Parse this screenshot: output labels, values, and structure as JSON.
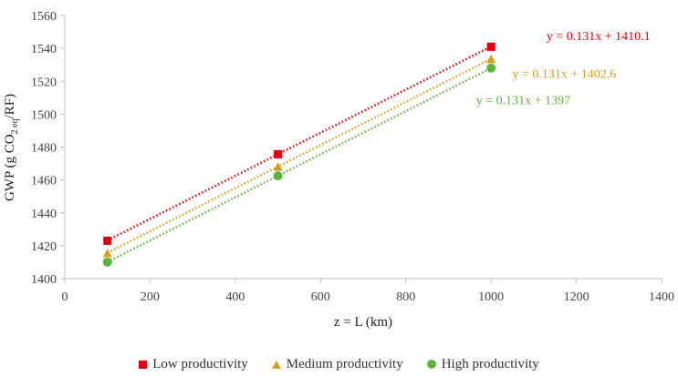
{
  "chart_data": {
    "type": "scatter",
    "title": "",
    "xlabel": "z = L (km)",
    "ylabel_main": "GWP (g CO",
    "ylabel_sub": "2 eq",
    "ylabel_tail": "/RF)",
    "xlim": [
      0,
      1400
    ],
    "ylim": [
      1400,
      1560
    ],
    "xticks": [
      0,
      200,
      400,
      600,
      800,
      1000,
      1200,
      1400
    ],
    "yticks": [
      1400,
      1420,
      1440,
      1460,
      1480,
      1500,
      1520,
      1540,
      1560
    ],
    "grid": false,
    "legend_position": "bottom",
    "series": [
      {
        "name": "Low productivity",
        "marker": "square",
        "color": "#E3000F",
        "x": [
          100,
          500,
          1000
        ],
        "y": [
          1423,
          1475.6,
          1541
        ],
        "trendline": {
          "slope": 0.131,
          "intercept": 1410.1,
          "label": "y = 0.131x + 1410.1"
        }
      },
      {
        "name": "Medium productivity",
        "marker": "triangle",
        "color": "#D4A017",
        "x": [
          100,
          500,
          1000
        ],
        "y": [
          1415.5,
          1468,
          1533.5
        ],
        "trendline": {
          "slope": 0.131,
          "intercept": 1402.6,
          "label": "y = 0.131x + 1402.6"
        }
      },
      {
        "name": "High productivity",
        "marker": "circle",
        "color": "#5DB43C",
        "x": [
          100,
          500,
          1000
        ],
        "y": [
          1410,
          1462.5,
          1528
        ],
        "trendline": {
          "slope": 0.131,
          "intercept": 1397,
          "label": "y = 0.131x + 1397"
        }
      }
    ]
  }
}
